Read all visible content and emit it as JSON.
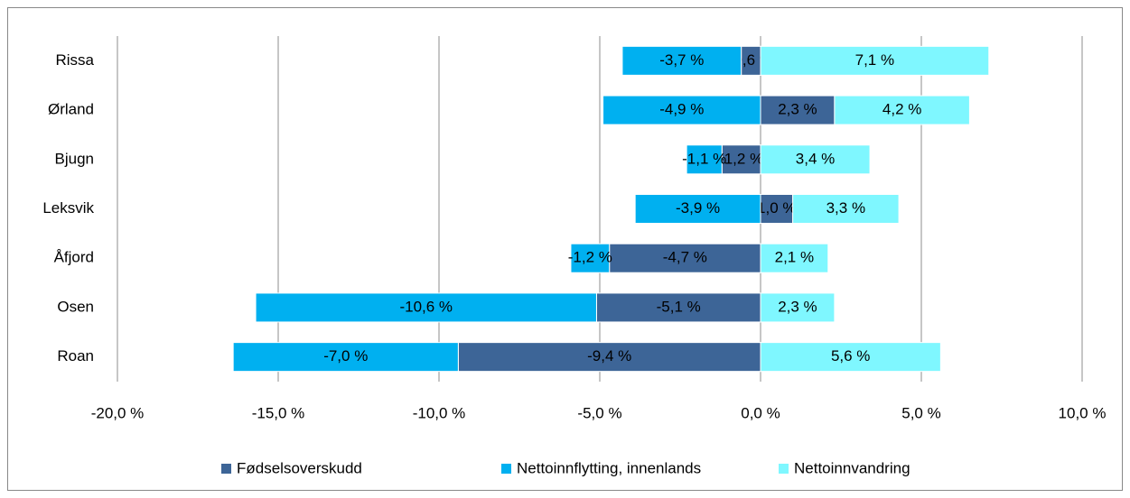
{
  "chart_data": {
    "type": "stacked_barh",
    "categories": [
      "Rissa",
      "Ørland",
      "Bjugn",
      "Leksvik",
      "Åfjord",
      "Osen",
      "Roan"
    ],
    "series": [
      {
        "name": "Fødselsoverskudd",
        "color": "#3d6597",
        "values": [
          -0.6,
          2.3,
          -1.2,
          1.0,
          -4.7,
          -5.1,
          -9.4
        ],
        "value_labels": [
          "-0,6 %",
          "2,3 %",
          "-1,2 %",
          "1,0 %",
          "-4,7 %",
          "-5,1 %",
          "-9,4 %"
        ]
      },
      {
        "name": "Nettoinnflytting, innenlands",
        "color": "#00b0f0",
        "values": [
          -3.7,
          -4.9,
          -1.1,
          -3.9,
          -1.2,
          -10.6,
          -7.0
        ],
        "value_labels": [
          "-3,7 %",
          "-4,9 %",
          "-1,1 %",
          "-3,9 %",
          "-1,2 %",
          "-10,6 %",
          "-7,0 %"
        ]
      },
      {
        "name": "Nettoinnvandring",
        "color": "#7ff7ff",
        "values": [
          7.1,
          4.2,
          3.4,
          3.3,
          2.1,
          2.3,
          5.6
        ],
        "value_labels": [
          "7,1 %",
          "4,2 %",
          "3,4 %",
          "3,3 %",
          "2,1 %",
          "2,3 %",
          "5,6 %"
        ]
      }
    ],
    "xlim": [
      -20,
      10
    ],
    "xticks": [
      {
        "value": -20,
        "label": "-20,0 %"
      },
      {
        "value": -15,
        "label": "-15,0 %"
      },
      {
        "value": -10,
        "label": "-10,0 %"
      },
      {
        "value": -5,
        "label": "-5,0 %"
      },
      {
        "value": 0,
        "label": "0,0 %"
      },
      {
        "value": 5,
        "label": "5,0 %"
      },
      {
        "value": 10,
        "label": "10,0 %"
      }
    ],
    "grid": true,
    "legend": "bottom"
  }
}
